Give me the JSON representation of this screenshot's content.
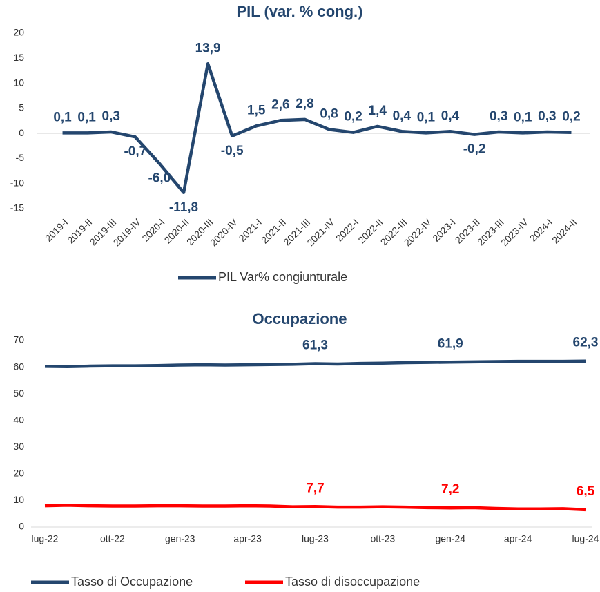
{
  "chart_data": [
    {
      "type": "line",
      "title": "PIL (var. % cong.)",
      "categories": [
        "2019-I",
        "2019-II",
        "2019-III",
        "2019-IV",
        "2020-I",
        "2020-II",
        "2020-III",
        "2020-IV",
        "2021-I",
        "2021-II",
        "2021-III",
        "2021-IV",
        "2022-I",
        "2022-II",
        "2022-III",
        "2022-IV",
        "2023-I",
        "2023-II",
        "2023-III",
        "2023-IV",
        "2024-I",
        "2024-II"
      ],
      "series": [
        {
          "name": "PIL Var% congiunturale",
          "color": "#24466e",
          "values": [
            0.1,
            0.1,
            0.3,
            -0.7,
            -6.0,
            -11.8,
            13.9,
            -0.5,
            1.5,
            2.6,
            2.8,
            0.8,
            0.2,
            1.4,
            0.4,
            0.1,
            0.4,
            -0.2,
            0.3,
            0.1,
            0.3,
            0.2
          ],
          "value_labels": [
            "0,1",
            "0,1",
            "0,3",
            "-0,7",
            "-6,0",
            "-11,8",
            "13,9",
            "-0,5",
            "1,5",
            "2,6",
            "2,8",
            "0,8",
            "0,2",
            "1,4",
            "0,4",
            "0,1",
            "0,4",
            "-0,2",
            "0,3",
            "0,1",
            "0,3",
            "0,2"
          ]
        }
      ],
      "ylim": [
        -15,
        20
      ],
      "yticks": [
        -15,
        -10,
        -5,
        0,
        5,
        10,
        15,
        20
      ],
      "legend": "bottom"
    },
    {
      "type": "line",
      "title": "Occupazione",
      "categories": [
        "lug-22",
        null,
        null,
        "ott-22",
        null,
        null,
        "gen-23",
        null,
        null,
        "apr-23",
        null,
        null,
        "lug-23",
        null,
        null,
        "ott-23",
        null,
        null,
        "gen-24",
        null,
        null,
        "apr-24",
        null,
        null,
        "lug-24"
      ],
      "series": [
        {
          "name": "Tasso di Occupazione",
          "color": "#24466e",
          "values": [
            60.3,
            60.2,
            60.4,
            60.5,
            60.5,
            60.6,
            60.8,
            60.9,
            60.8,
            60.9,
            61.0,
            61.1,
            61.3,
            61.2,
            61.4,
            61.5,
            61.7,
            61.8,
            61.9,
            62.0,
            62.1,
            62.2,
            62.2,
            62.2,
            62.3
          ],
          "value_labels": [
            null,
            null,
            null,
            null,
            null,
            null,
            null,
            null,
            null,
            null,
            null,
            null,
            "61,3",
            null,
            null,
            null,
            null,
            null,
            "61,9",
            null,
            null,
            null,
            null,
            null,
            "62,3"
          ]
        },
        {
          "name": "Tasso di disoccupazione",
          "color": "#ff0000",
          "values": [
            8.0,
            8.2,
            8.0,
            7.9,
            7.9,
            8.0,
            8.0,
            7.9,
            7.9,
            8.0,
            7.9,
            7.6,
            7.7,
            7.5,
            7.5,
            7.6,
            7.5,
            7.3,
            7.2,
            7.3,
            7.0,
            6.8,
            6.8,
            6.9,
            6.5
          ],
          "value_labels": [
            null,
            null,
            null,
            null,
            null,
            null,
            null,
            null,
            null,
            null,
            null,
            null,
            "7,7",
            null,
            null,
            null,
            null,
            null,
            "7,2",
            null,
            null,
            null,
            null,
            null,
            "6,5"
          ]
        }
      ],
      "ylim": [
        0,
        70
      ],
      "yticks": [
        0,
        10,
        20,
        30,
        40,
        50,
        60,
        70
      ],
      "legend": "bottom"
    }
  ]
}
